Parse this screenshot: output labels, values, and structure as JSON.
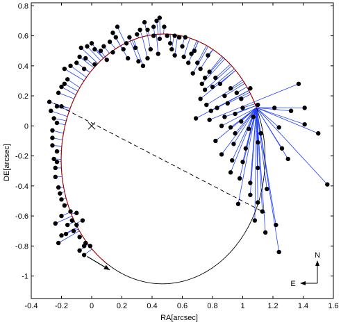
{
  "chart_data": {
    "type": "scatter",
    "title": "",
    "xlabel": "RA[arcsec]",
    "ylabel": "DE[arcsec]",
    "xlim": [
      -0.4,
      1.6
    ],
    "ylim": [
      -1.15,
      0.82
    ],
    "xticks": [
      -0.4,
      -0.2,
      0,
      0.2,
      0.4,
      0.6,
      0.8,
      1,
      1.2,
      1.4,
      1.6
    ],
    "xtick_labels": [
      "-0.4",
      "-0.2",
      "0",
      "0.2",
      "0.4",
      "0.6",
      "0.8",
      "1",
      "1.2",
      "1.4",
      "1.6"
    ],
    "yticks": [
      0.8,
      0.6,
      0.4,
      0.2,
      0,
      -0.2,
      -0.4,
      -0.6,
      -0.8,
      -1
    ],
    "ytick_labels": [
      "0.8",
      "0.6",
      "0.4",
      "0.2",
      "0",
      "-0.2",
      "-0.4",
      "-0.6",
      "-0.8",
      "-1"
    ],
    "grid": false,
    "center_marker": {
      "x": 0,
      "y": 0,
      "symbol": "×"
    },
    "line_of_nodes": {
      "from": [
        -0.25,
        0.15
      ],
      "to": [
        1.15,
        -0.58
      ]
    },
    "orbit": {
      "center": [
        0.473,
        -0.22
      ],
      "a": 0.675,
      "b": 0.832,
      "tilt_deg": -1.0
    },
    "observation_arc": {
      "start_deg": 25,
      "end_deg": 238
    },
    "direction_arrow": {
      "from": [
        -0.03,
        -0.87
      ],
      "to": [
        0.12,
        -0.96
      ]
    },
    "compass": {
      "north": "N",
      "east": "E"
    },
    "observations": [
      [
        -0.22,
        -0.78
      ],
      [
        -0.2,
        -0.73
      ],
      [
        -0.17,
        -0.72
      ],
      [
        -0.12,
        -0.7
      ],
      [
        -0.08,
        -0.74
      ],
      [
        -0.08,
        -0.83
      ],
      [
        -0.04,
        -0.78
      ],
      [
        -0.01,
        -0.8
      ],
      [
        -0.05,
        -0.86
      ],
      [
        -0.06,
        -0.63
      ],
      [
        -0.24,
        -0.65
      ],
      [
        -0.2,
        -0.6
      ],
      [
        -0.13,
        -0.63
      ],
      [
        -0.1,
        -0.66
      ],
      [
        -0.14,
        -0.57
      ],
      [
        -0.18,
        -0.53
      ],
      [
        -0.2,
        -0.49
      ],
      [
        -0.21,
        -0.45
      ],
      [
        -0.22,
        -0.41
      ],
      [
        -0.24,
        -0.34
      ],
      [
        -0.24,
        -0.28
      ],
      [
        -0.23,
        -0.24
      ],
      [
        -0.25,
        -0.22
      ],
      [
        -0.23,
        -0.17
      ],
      [
        -0.26,
        -0.13
      ],
      [
        -0.26,
        -0.08
      ],
      [
        -0.26,
        -0.03
      ],
      [
        -0.23,
        0.02
      ],
      [
        -0.25,
        0.05
      ],
      [
        -0.27,
        0.1
      ],
      [
        -0.23,
        0.13
      ],
      [
        -0.2,
        0.13
      ],
      [
        -0.28,
        0.16
      ],
      [
        -0.22,
        0.22
      ],
      [
        -0.2,
        0.26
      ],
      [
        -0.18,
        0.28
      ],
      [
        -0.16,
        0.31
      ],
      [
        -0.18,
        0.38
      ],
      [
        -0.14,
        0.4
      ],
      [
        -0.1,
        0.42
      ],
      [
        -0.08,
        0.46
      ],
      [
        -0.04,
        0.45
      ],
      [
        -0.03,
        0.53
      ],
      [
        -0.07,
        0.52
      ],
      [
        0.02,
        0.51
      ],
      [
        0.06,
        0.5
      ],
      [
        0.02,
        0.41
      ],
      [
        -0.05,
        0.38
      ],
      [
        0.1,
        0.44
      ],
      [
        0.08,
        0.53
      ],
      [
        0.12,
        0.56
      ],
      [
        0.14,
        0.62
      ],
      [
        0.16,
        0.59
      ],
      [
        0.17,
        0.66
      ],
      [
        0.14,
        0.49
      ],
      [
        0.21,
        0.51
      ],
      [
        0.23,
        0.55
      ],
      [
        0.25,
        0.59
      ],
      [
        0.3,
        0.61
      ],
      [
        0.32,
        0.64
      ],
      [
        0.35,
        0.69
      ],
      [
        0.37,
        0.64
      ],
      [
        0.41,
        0.66
      ],
      [
        0.43,
        0.7
      ],
      [
        0.45,
        0.72
      ],
      [
        0.48,
        0.66
      ],
      [
        0.5,
        0.6
      ],
      [
        0.24,
        0.45
      ],
      [
        0.31,
        0.43
      ],
      [
        0.37,
        0.45
      ],
      [
        0.34,
        0.4
      ],
      [
        0.39,
        0.51
      ],
      [
        0.44,
        0.48
      ],
      [
        0.45,
        0.58
      ],
      [
        0.52,
        0.55
      ],
      [
        0.55,
        0.6
      ],
      [
        0.58,
        0.59
      ],
      [
        0.6,
        0.53
      ],
      [
        0.53,
        0.51
      ],
      [
        0.55,
        0.47
      ],
      [
        0.62,
        0.59
      ],
      [
        0.66,
        0.48
      ],
      [
        0.61,
        0.46
      ],
      [
        0.64,
        0.42
      ],
      [
        0.7,
        0.42
      ],
      [
        0.68,
        0.5
      ],
      [
        0.77,
        0.47
      ],
      [
        0.72,
        0.38
      ],
      [
        0.67,
        0.35
      ],
      [
        0.75,
        0.32
      ],
      [
        0.78,
        0.36
      ],
      [
        0.82,
        0.32
      ],
      [
        0.85,
        0.28
      ],
      [
        0.8,
        0.26
      ],
      [
        0.75,
        0.24
      ],
      [
        0.73,
        0.28
      ],
      [
        0.92,
        0.25
      ],
      [
        0.96,
        0.22
      ],
      [
        0.99,
        0.18
      ],
      [
        1.05,
        0.25
      ],
      [
        0.76,
        0.14
      ],
      [
        0.79,
        0.1
      ],
      [
        0.83,
        0.12
      ],
      [
        0.9,
        0.15
      ],
      [
        0.88,
        0.06
      ],
      [
        0.95,
        0.08
      ],
      [
        1.0,
        0.12
      ],
      [
        1.1,
        0.14
      ],
      [
        1.21,
        0.12
      ],
      [
        1.32,
        0.1
      ],
      [
        0.69,
        0.05
      ],
      [
        0.78,
        0.04
      ],
      [
        0.86,
        0.0
      ],
      [
        0.92,
        -0.01
      ],
      [
        0.99,
        0.03
      ],
      [
        1.04,
        -0.02
      ],
      [
        1.12,
        -0.05
      ],
      [
        1.24,
        -0.01
      ],
      [
        1.41,
        0.01
      ],
      [
        1.5,
        -0.05
      ],
      [
        0.82,
        -0.1
      ],
      [
        0.94,
        -0.12
      ],
      [
        1.02,
        -0.15
      ],
      [
        1.1,
        -0.11
      ],
      [
        1.26,
        -0.15
      ],
      [
        0.86,
        -0.19
      ],
      [
        0.93,
        -0.23
      ],
      [
        1.0,
        -0.24
      ],
      [
        1.1,
        -0.28
      ],
      [
        1.3,
        -0.22
      ],
      [
        1.56,
        -0.39
      ],
      [
        0.92,
        -0.31
      ],
      [
        0.98,
        -0.35
      ],
      [
        1.05,
        -0.38
      ],
      [
        1.16,
        -0.42
      ],
      [
        1.05,
        -0.46
      ],
      [
        1.1,
        -0.51
      ],
      [
        0.97,
        -0.52
      ],
      [
        1.08,
        -0.63
      ],
      [
        1.13,
        -0.57
      ],
      [
        1.22,
        -0.66
      ],
      [
        1.24,
        -0.84
      ],
      [
        1.15,
        -0.71
      ],
      [
        1.37,
        0.28
      ],
      [
        1.41,
        0.12
      ],
      [
        -0.05,
        -0.8
      ],
      [
        -0.1,
        -0.58
      ],
      [
        -0.16,
        -0.66
      ],
      [
        0.0,
        0.55
      ],
      [
        0.29,
        0.52
      ],
      [
        0.41,
        0.6
      ],
      [
        0.72,
        0.18
      ],
      [
        0.88,
        0.2
      ],
      [
        0.95,
        -0.05
      ],
      [
        1.07,
        0.06
      ]
    ]
  }
}
